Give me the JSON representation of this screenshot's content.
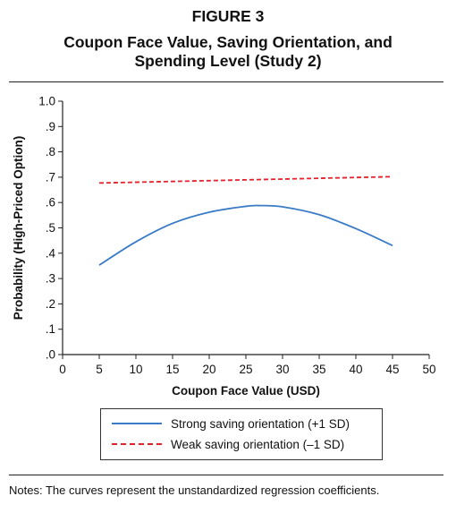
{
  "figure_label": "FIGURE 3",
  "title_lines": [
    "Coupon Face Value, Saving Orientation, and",
    "Spending Level (Study 2)"
  ],
  "notes": "Notes: The curves represent the unstandardized regression coefficients.",
  "chart_data": {
    "type": "line",
    "title": "Coupon Face Value, Saving Orientation, and Spending Level (Study 2)",
    "xlabel": "Coupon Face Value (USD)",
    "ylabel": "Probability (High-Priced Option)",
    "xlim": [
      0,
      50
    ],
    "ylim": [
      0,
      1
    ],
    "x_ticks": [
      0,
      5,
      10,
      15,
      20,
      25,
      30,
      35,
      40,
      45,
      50
    ],
    "x_tick_labels": [
      "0",
      "5",
      "10",
      "15",
      "20",
      "25",
      "30",
      "35",
      "40",
      "45",
      "50"
    ],
    "y_ticks": [
      0,
      0.1,
      0.2,
      0.3,
      0.4,
      0.5,
      0.6,
      0.7,
      0.8,
      0.9,
      1.0
    ],
    "y_tick_labels": [
      ".0",
      ".1",
      ".2",
      ".3",
      ".4",
      ".5",
      ".6",
      ".7",
      ".8",
      ".9",
      "1.0"
    ],
    "grid": false,
    "legend_position": "bottom",
    "series": [
      {
        "name": "Strong saving orientation (+1 SD)",
        "color": "#3a7bc8",
        "style": "solid",
        "x": [
          5,
          10,
          15,
          20,
          25,
          27,
          30,
          35,
          40,
          45
        ],
        "y": [
          0.353,
          0.445,
          0.518,
          0.562,
          0.585,
          0.588,
          0.583,
          0.552,
          0.497,
          0.43
        ]
      },
      {
        "name": "Weak saving orientation (–1 SD)",
        "color": "#e8202a",
        "style": "dashed",
        "x": [
          5,
          45
        ],
        "y": [
          0.677,
          0.702
        ]
      }
    ]
  }
}
